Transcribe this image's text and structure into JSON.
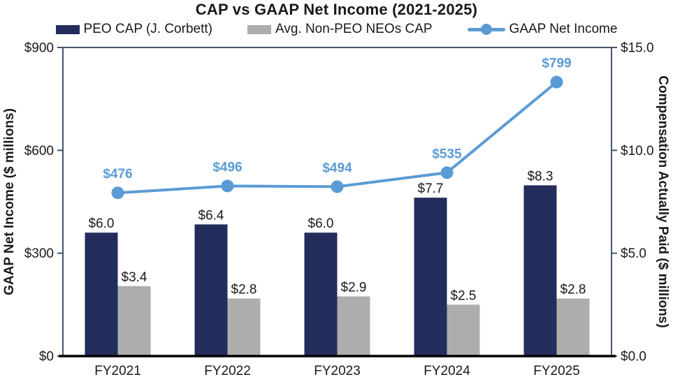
{
  "title": "CAP vs GAAP Net Income (2021-2025)",
  "colors": {
    "peo_bar": "#222D5C",
    "neo_bar": "#ADADAD",
    "line": "#5B9BD5",
    "axis_frame": "#44546A",
    "bottom_axis": "#000000",
    "text": "#1A1A1A"
  },
  "chart_data": {
    "type": "bar+line",
    "title": "CAP vs GAAP Net Income (2021-2025)",
    "categories": [
      "FY2021",
      "FY2022",
      "FY2023",
      "FY2024",
      "FY2025"
    ],
    "series": [
      {
        "name": "PEO CAP (J. Corbett)",
        "type": "bar",
        "axis": "right",
        "color": "#222D5C",
        "values": [
          6.0,
          6.4,
          6.0,
          7.7,
          8.3
        ],
        "labels": [
          "$6.0",
          "$6.4",
          "$6.0",
          "$7.7",
          "$8.3"
        ]
      },
      {
        "name": "Avg. Non-PEO NEOs CAP",
        "type": "bar",
        "axis": "right",
        "color": "#ADADAD",
        "values": [
          3.4,
          2.8,
          2.9,
          2.5,
          2.8
        ],
        "labels": [
          "$3.4",
          "$2.8",
          "$2.9",
          "$2.5",
          "$2.8"
        ]
      },
      {
        "name": "GAAP Net Income",
        "type": "line",
        "axis": "left",
        "color": "#5B9BD5",
        "values": [
          476,
          496,
          494,
          535,
          799
        ],
        "labels": [
          "$476",
          "$496",
          "$494",
          "$535",
          "$799"
        ]
      }
    ],
    "axis_left": {
      "label": "GAAP Net Income ($ millions)",
      "min": 0,
      "max": 900,
      "tick_values": [
        0,
        300,
        600,
        900
      ],
      "tick_labels": [
        "$0",
        "$300",
        "$600",
        "$900"
      ]
    },
    "axis_right": {
      "label": "Compensation Actually Paid ($ millions)",
      "min": 0,
      "max": 15,
      "tick_values": [
        0,
        5,
        10,
        15
      ],
      "tick_labels": [
        "$0.0",
        "$5.0",
        "$10.0",
        "$15.0"
      ]
    },
    "legend_position": "top",
    "grid": false
  }
}
